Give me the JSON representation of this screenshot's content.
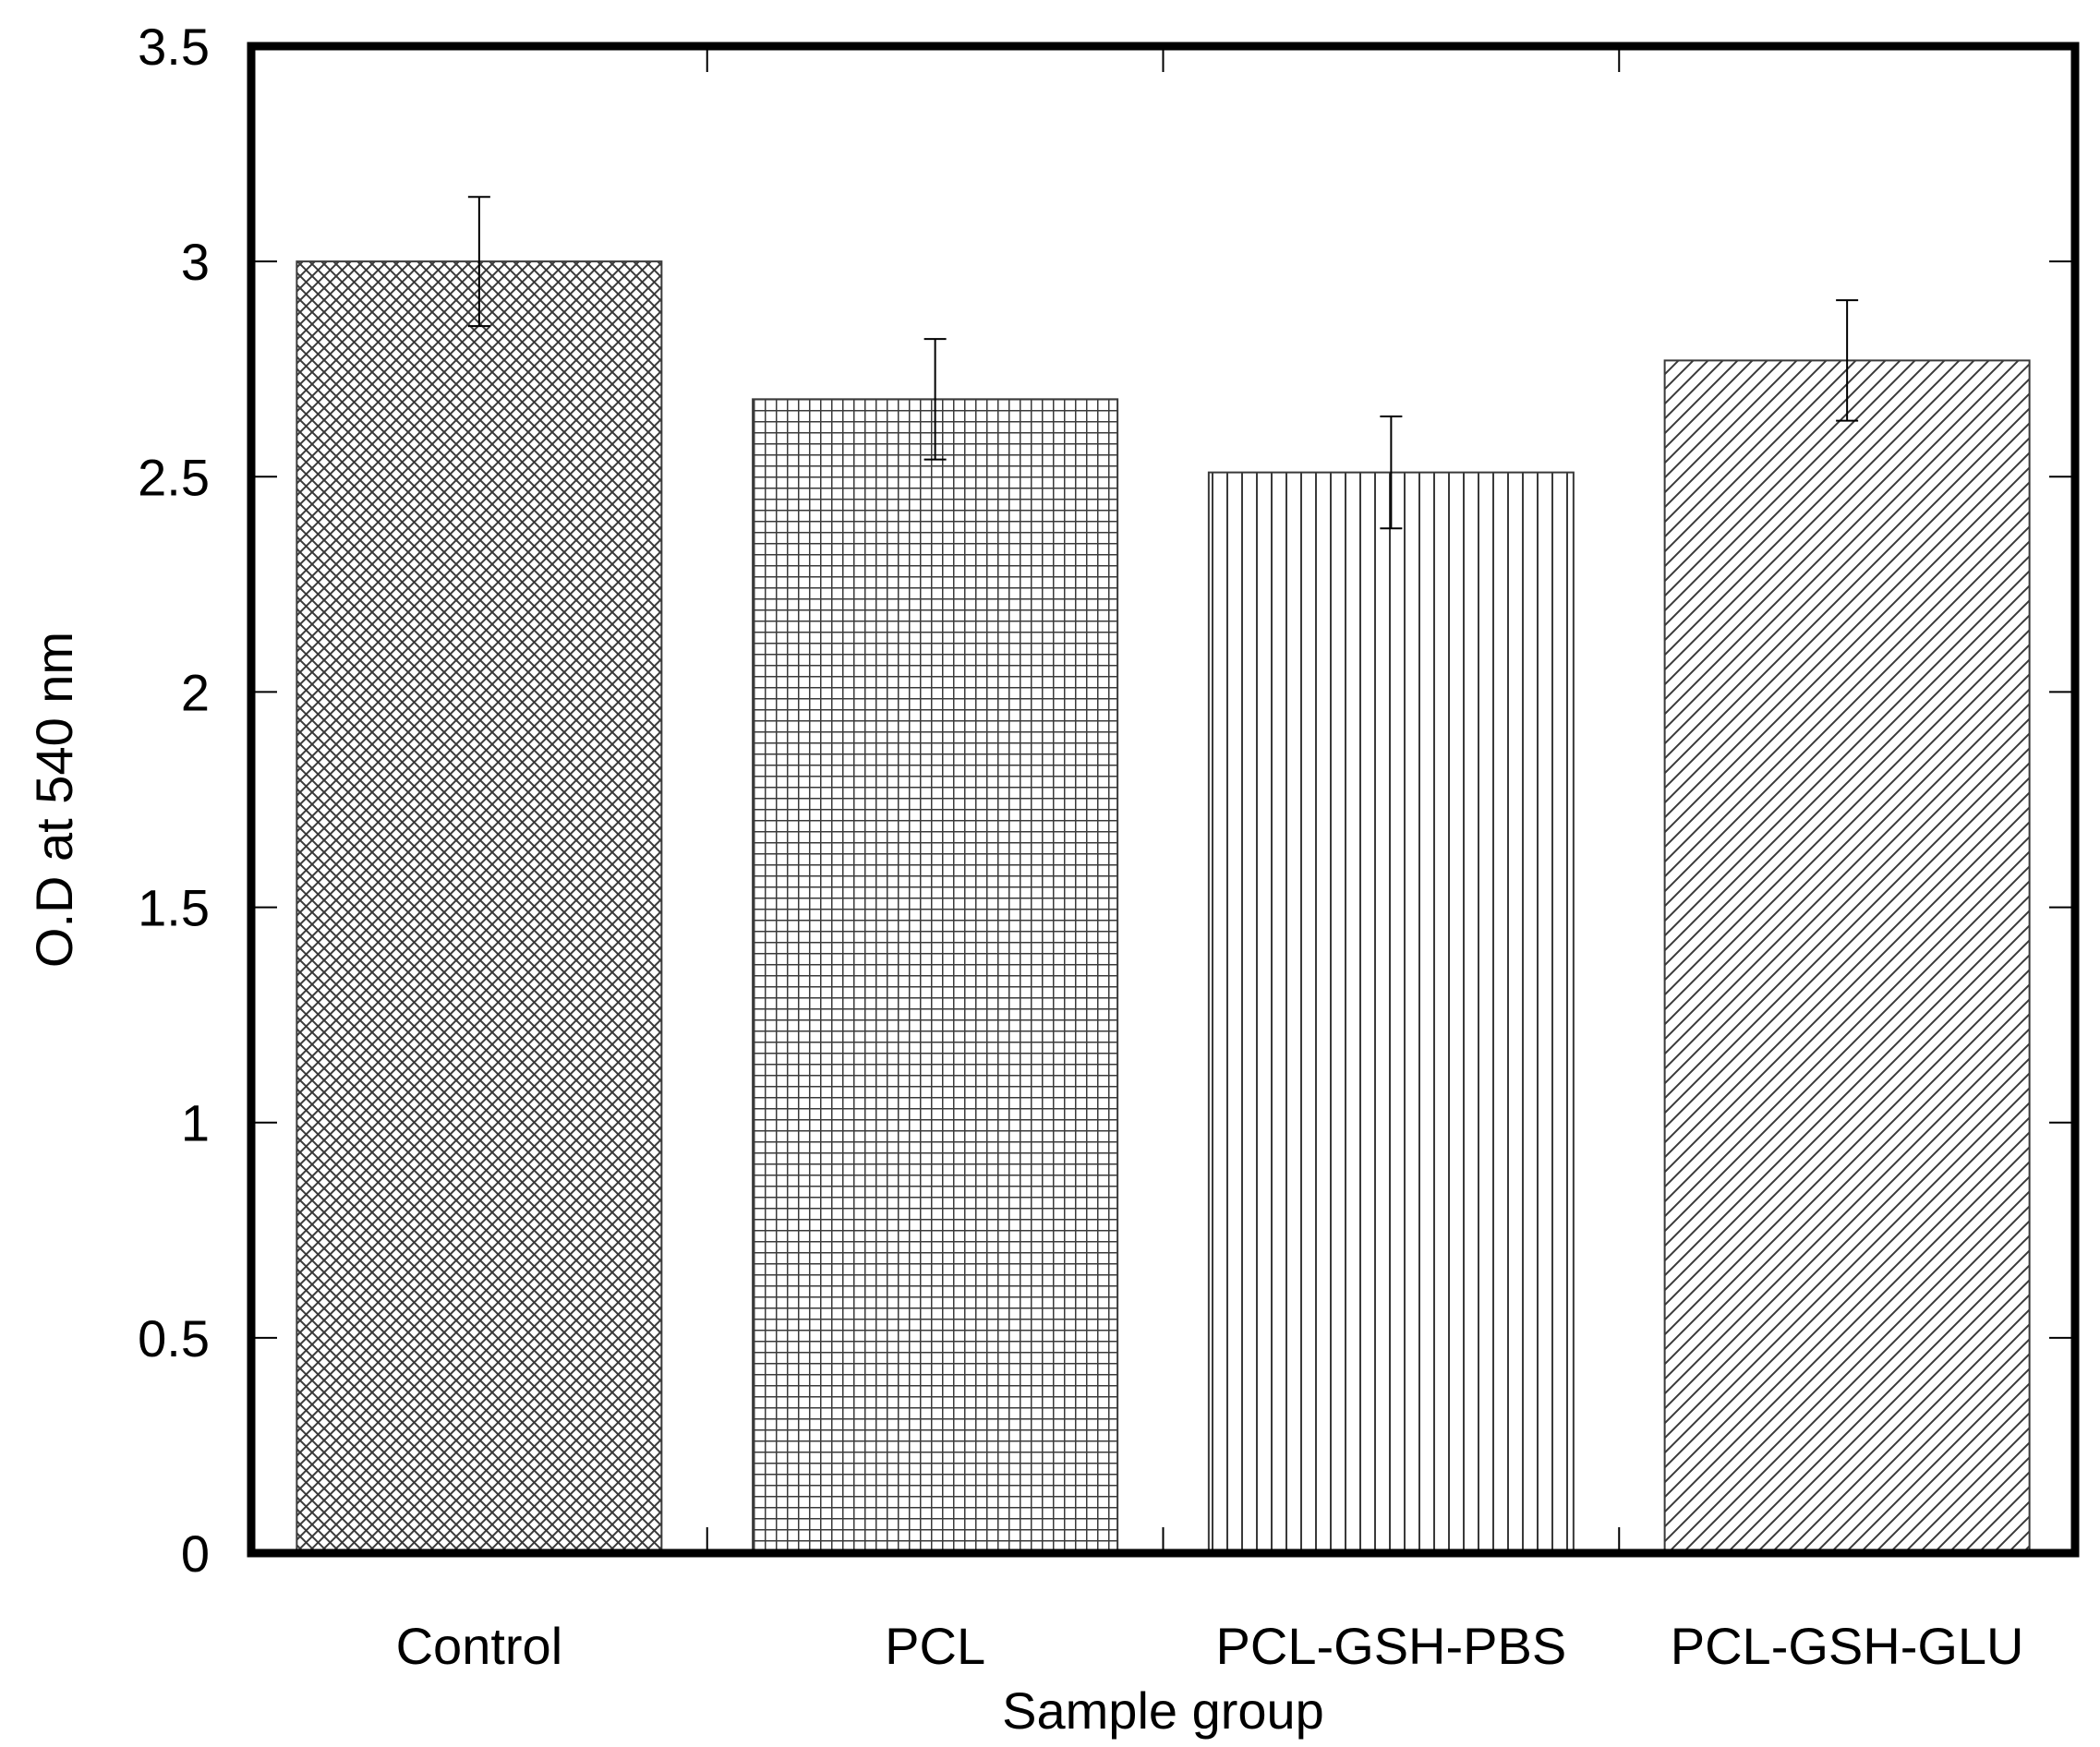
{
  "chart_data": {
    "type": "bar",
    "title": "",
    "xlabel": "Sample group",
    "ylabel": "O.D at 540 nm",
    "ylim": [
      0,
      3.5
    ],
    "yticks": [
      0,
      0.5,
      1,
      1.5,
      2,
      2.5,
      3,
      3.5
    ],
    "ytick_labels": [
      "0",
      "0.5",
      "1",
      "1.5",
      "2",
      "2.5",
      "3",
      "3.5"
    ],
    "grid": false,
    "legend": "none",
    "categories": [
      "Control",
      "PCL",
      "PCL-GSH-PBS",
      "PCL-GSH-GLU"
    ],
    "values": [
      3.0,
      2.68,
      2.51,
      2.77
    ],
    "errors": [
      0.15,
      0.14,
      0.13,
      0.14
    ],
    "patterns": [
      "crosshatch",
      "grid",
      "vertical",
      "diagonal"
    ],
    "colors": {
      "bar_fill": "#ffffff",
      "bar_pattern": "#3a3a3a",
      "axis": "#000000"
    }
  }
}
